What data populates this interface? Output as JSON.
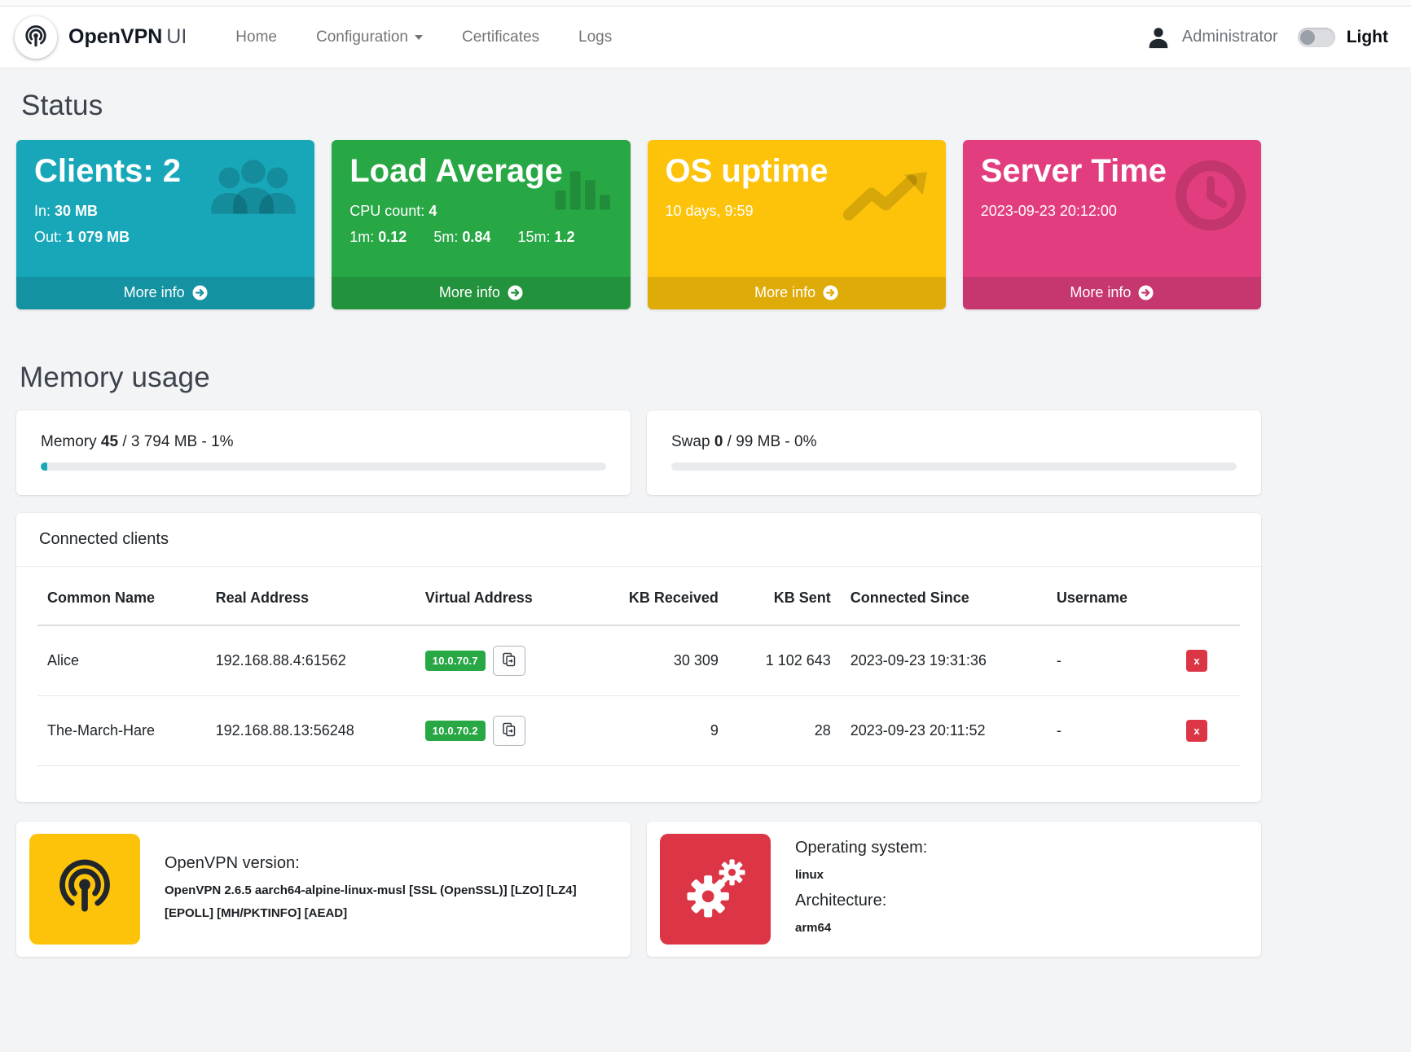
{
  "navbar": {
    "brand_main": "OpenVPN",
    "brand_suffix": "UI",
    "nav": [
      {
        "label": "Home"
      },
      {
        "label": "Configuration"
      },
      {
        "label": "Certificates"
      },
      {
        "label": "Logs"
      }
    ],
    "user_name": "Administrator",
    "theme_label": "Light"
  },
  "status": {
    "heading": "Status",
    "cards": {
      "clients": {
        "title": "Clients: 2",
        "in_label": "In:",
        "in_value": "30 MB",
        "out_label": "Out:",
        "out_value": "1 079 MB",
        "more_info": "More info",
        "color": "#18a7b9"
      },
      "load": {
        "title": "Load Average",
        "cpu_label": "CPU count:",
        "cpu_value": "4",
        "m1_label": "1m:",
        "m1_value": "0.12",
        "m5_label": "5m:",
        "m5_value": "0.84",
        "m15_label": "15m:",
        "m15_value": "1.2",
        "more_info": "More info",
        "color": "#28a745"
      },
      "uptime": {
        "title": "OS uptime",
        "value": "10 days, 9:59",
        "more_info": "More info",
        "color": "#fdc30b"
      },
      "server_time": {
        "title": "Server Time",
        "value": "2023-09-23 20:12:00",
        "more_info": "More info",
        "color": "#e23e7f"
      }
    }
  },
  "memory": {
    "heading": "Memory usage",
    "memory_card": {
      "label": "Memory",
      "value": "45",
      "detail": " / 3 794 MB - 1%",
      "percent": 1.2
    },
    "swap_card": {
      "label": "Swap",
      "value": "0",
      "detail": " / 99 MB - 0%",
      "percent": 0
    }
  },
  "clients_table": {
    "title": "Connected clients",
    "columns": [
      "Common Name",
      "Real Address",
      "Virtual Address",
      "KB Received",
      "KB Sent",
      "Connected Since",
      "Username"
    ],
    "rows": [
      {
        "common_name": "Alice",
        "real_address": "192.168.88.4:61562",
        "virtual_address": "10.0.70.7",
        "kb_received": "30 309",
        "kb_sent": "1 102 643",
        "connected_since": "2023-09-23 19:31:36",
        "username": "-",
        "disconnect_label": "x"
      },
      {
        "common_name": "The-March-Hare",
        "real_address": "192.168.88.13:56248",
        "virtual_address": "10.0.70.2",
        "kb_received": "9",
        "kb_sent": "28",
        "connected_since": "2023-09-23 20:11:52",
        "username": "-",
        "disconnect_label": "x"
      }
    ]
  },
  "about": {
    "openvpn": {
      "label": "OpenVPN version:",
      "value": "OpenVPN 2.6.5 aarch64-alpine-linux-musl [SSL (OpenSSL)] [LZO] [LZ4] [EPOLL] [MH/PKTINFO] [AEAD]"
    },
    "os": {
      "os_label": "Operating system:",
      "os_value": "linux",
      "arch_label": "Architecture:",
      "arch_value": "arm64"
    }
  },
  "colors": {
    "teal": "#18a7b9",
    "green": "#28a745",
    "yellow": "#fdc30b",
    "pink": "#e23e7f",
    "red": "#dc3545",
    "badge_green": "#28a745"
  }
}
